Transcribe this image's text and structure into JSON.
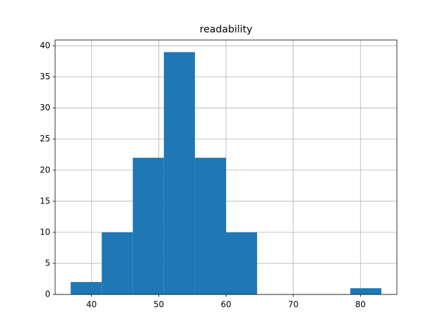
{
  "chart_data": {
    "type": "histogram",
    "title": "readability",
    "bins": [
      36.9,
      41.52,
      46.14,
      50.76,
      55.38,
      60.0,
      64.62,
      69.24,
      73.86,
      78.48,
      83.1
    ],
    "counts": [
      2,
      10,
      22,
      39,
      22,
      10,
      0,
      0,
      0,
      1
    ],
    "color": "#1f77b4",
    "xlim": [
      34.59,
      85.41
    ],
    "xticks": [
      40,
      50,
      60,
      70,
      80
    ],
    "ylim": [
      0,
      40.95
    ],
    "yticks": [
      0,
      5,
      10,
      15,
      20,
      25,
      30,
      35,
      40
    ],
    "grid": true
  }
}
